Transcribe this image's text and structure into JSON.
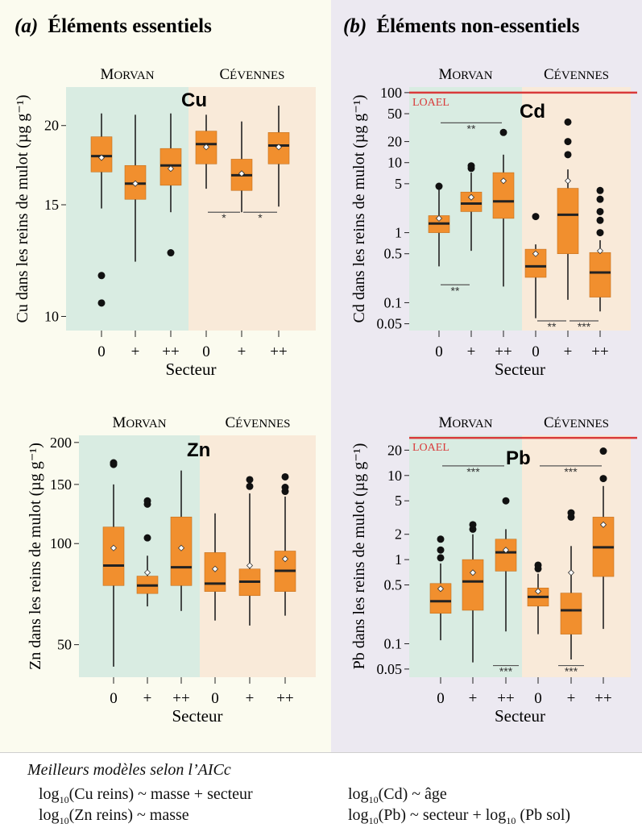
{
  "colors": {
    "left_panel_bg": "#fbfbef",
    "right_panel_bg": "#ece9f1",
    "morvan_bg": "#d9ece2",
    "cevennes_bg": "#f9ead9",
    "box_fill": "#f18f2e",
    "median": "#222222",
    "loael": "#d93a3a",
    "sig_line": "#555555"
  },
  "panels": [
    {
      "heading_letter": "(a)",
      "heading_text": "Éléments essentiels"
    },
    {
      "heading_letter": "(b)",
      "heading_text": "Éléments non-essentiels"
    }
  ],
  "region_labels": {
    "morvan": "Morvan",
    "cevennes": "Cévennes"
  },
  "loael_label": "LOAEL",
  "chart_data": [
    {
      "type": "box",
      "element": "Cu",
      "ylabel": "Cu dans les reins de mulot (µg g⁻¹)",
      "xlabel": "Secteur",
      "log_scale": true,
      "ylim": [
        9.5,
        23
      ],
      "yticks": [
        10,
        15,
        20
      ],
      "categories": [
        "0",
        "+",
        "++",
        "0",
        "+",
        "++"
      ],
      "regions": [
        "Morvan",
        "Morvan",
        "Morvan",
        "Cévennes",
        "Cévennes",
        "Cévennes"
      ],
      "boxes": [
        {
          "min": 14.8,
          "q1": 16.9,
          "median": 17.9,
          "q3": 19.2,
          "max": 20.9,
          "mean": 17.8,
          "outliers": [
            11.6,
            10.5
          ]
        },
        {
          "min": 12.2,
          "q1": 15.3,
          "median": 16.2,
          "q3": 17.3,
          "max": 20.8,
          "mean": 16.2
        },
        {
          "min": 14.6,
          "q1": 16.1,
          "median": 17.3,
          "q3": 18.4,
          "max": 20.9,
          "mean": 17.1,
          "outliers": [
            12.6
          ]
        },
        {
          "min": 15.9,
          "q1": 17.4,
          "median": 18.7,
          "q3": 19.6,
          "max": 20.8,
          "mean": 18.5
        },
        {
          "min": 14.6,
          "q1": 15.8,
          "median": 16.7,
          "q3": 17.7,
          "max": 20.3,
          "mean": 16.8
        },
        {
          "min": 14.9,
          "q1": 17.4,
          "median": 18.6,
          "q3": 19.5,
          "max": 21.5,
          "mean": 18.5
        }
      ],
      "lines": [],
      "significance": [
        {
          "from": 3,
          "to": 4,
          "label": "*",
          "y": 14.6
        },
        {
          "from": 4,
          "to": 5,
          "label": "*",
          "y": 14.6
        }
      ]
    },
    {
      "type": "box",
      "element": "Cd",
      "ylabel": "Cd dans les reins de mulot (µg g⁻¹)",
      "xlabel": "Secteur",
      "log_scale": true,
      "ylim": [
        0.04,
        120
      ],
      "yticks": [
        0.05,
        0.1,
        0.5,
        1,
        5,
        10,
        20,
        50,
        100
      ],
      "categories": [
        "0",
        "+",
        "++",
        "0",
        "+",
        "++"
      ],
      "regions": [
        "Morvan",
        "Morvan",
        "Morvan",
        "Cévennes",
        "Cévennes",
        "Cévennes"
      ],
      "boxes": [
        {
          "min": 0.33,
          "q1": 1.0,
          "median": 1.35,
          "q3": 1.75,
          "max": 4.2,
          "mean": 1.6,
          "outliers": [
            4.6
          ]
        },
        {
          "min": 0.55,
          "q1": 2.0,
          "median": 2.6,
          "q3": 3.8,
          "max": 7.2,
          "mean": 3.2,
          "outliers": [
            8.3,
            9.0
          ]
        },
        {
          "min": 0.17,
          "q1": 1.6,
          "median": 2.8,
          "q3": 7.2,
          "max": 13.0,
          "mean": 5.5,
          "outliers": [
            27
          ]
        },
        {
          "min": 0.06,
          "q1": 0.23,
          "median": 0.33,
          "q3": 0.58,
          "max": 0.68,
          "mean": 0.5,
          "outliers": [
            1.7
          ]
        },
        {
          "min": 0.11,
          "q1": 0.5,
          "median": 1.8,
          "q3": 4.3,
          "max": 8.0,
          "mean": 5.5,
          "outliers": [
            13,
            20,
            38
          ]
        },
        {
          "min": 0.075,
          "q1": 0.12,
          "median": 0.27,
          "q3": 0.52,
          "max": 0.78,
          "mean": 0.55,
          "outliers": [
            1.0,
            1.5,
            2.0,
            3.0,
            4.0
          ]
        }
      ],
      "lines": [
        {
          "label": "LOAEL",
          "y": 100
        }
      ],
      "significance": [
        {
          "from": 0,
          "to": 2,
          "label": "**",
          "y": 37
        },
        {
          "from": 0,
          "to": 1,
          "label": "**",
          "y": 0.18
        },
        {
          "from": 3,
          "to": 4,
          "label": "**",
          "y": 0.055
        },
        {
          "from": 4,
          "to": 5,
          "label": "***",
          "y": 0.055
        }
      ]
    },
    {
      "type": "box",
      "element": "Zn",
      "ylabel": "Zn dans les reins de mulot (µg g⁻¹)",
      "xlabel": "Secteur",
      "log_scale": true,
      "ylim": [
        40,
        210
      ],
      "yticks": [
        50,
        100,
        150,
        200
      ],
      "categories": [
        "0",
        "+",
        "++",
        "0",
        "+",
        "++"
      ],
      "regions": [
        "Morvan",
        "Morvan",
        "Morvan",
        "Cévennes",
        "Cévennes",
        "Cévennes"
      ],
      "boxes": [
        {
          "min": 43,
          "q1": 75,
          "median": 86,
          "q3": 112,
          "max": 150,
          "mean": 97,
          "outliers": [
            172,
            174
          ]
        },
        {
          "min": 65,
          "q1": 71,
          "median": 75,
          "q3": 80,
          "max": 92,
          "mean": 82,
          "outliers": [
            104,
            131,
            134
          ]
        },
        {
          "min": 63,
          "q1": 75,
          "median": 85,
          "q3": 120,
          "max": 165,
          "mean": 97
        },
        {
          "min": 59,
          "q1": 72,
          "median": 76,
          "q3": 94,
          "max": 123,
          "mean": 84
        },
        {
          "min": 57,
          "q1": 70,
          "median": 77,
          "q3": 84,
          "max": 141,
          "mean": 86,
          "outliers": [
            148,
            155
          ]
        },
        {
          "min": 61,
          "q1": 72,
          "median": 83,
          "q3": 95,
          "max": 138,
          "mean": 90,
          "outliers": [
            143,
            147,
            158
          ]
        }
      ],
      "lines": [],
      "significance": []
    },
    {
      "type": "box",
      "element": "Pb",
      "ylabel": "Pb dans les reins de mulot (µg g⁻¹)",
      "xlabel": "Secteur",
      "log_scale": true,
      "ylim": [
        0.04,
        30
      ],
      "yticks": [
        0.05,
        0.1,
        0.5,
        1,
        2,
        5,
        10,
        20
      ],
      "categories": [
        "0",
        "+",
        "++",
        "0",
        "+",
        "++"
      ],
      "regions": [
        "Morvan",
        "Morvan",
        "Morvan",
        "Cévennes",
        "Cévennes",
        "Cévennes"
      ],
      "boxes": [
        {
          "min": 0.11,
          "q1": 0.23,
          "median": 0.32,
          "q3": 0.52,
          "max": 0.9,
          "mean": 0.45,
          "outliers": [
            1.05,
            1.3,
            1.75
          ]
        },
        {
          "min": 0.06,
          "q1": 0.25,
          "median": 0.55,
          "q3": 1.0,
          "max": 2.0,
          "mean": 0.7,
          "outliers": [
            2.3,
            2.6
          ]
        },
        {
          "min": 0.14,
          "q1": 0.73,
          "median": 1.22,
          "q3": 1.75,
          "max": 2.3,
          "mean": 1.3,
          "outliers": [
            5.0
          ]
        },
        {
          "min": 0.13,
          "q1": 0.28,
          "median": 0.36,
          "q3": 0.46,
          "max": 0.68,
          "mean": 0.42,
          "outliers": [
            0.78,
            0.86
          ]
        },
        {
          "min": 0.065,
          "q1": 0.13,
          "median": 0.25,
          "q3": 0.4,
          "max": 1.45,
          "mean": 0.7,
          "outliers": [
            3.2,
            3.6
          ]
        },
        {
          "min": 0.15,
          "q1": 0.63,
          "median": 1.4,
          "q3": 3.2,
          "max": 7.5,
          "mean": 2.6,
          "outliers": [
            9.2,
            19.5
          ]
        }
      ],
      "lines": [
        {
          "label": "LOAEL",
          "y": 28
        }
      ],
      "significance": [
        {
          "from": 0,
          "to": 2,
          "label": "***",
          "y": 13
        },
        {
          "from": 3,
          "to": 5,
          "label": "***",
          "y": 13
        },
        {
          "from": 2,
          "to": 2,
          "label": "***",
          "y": 0.055
        },
        {
          "from": 4,
          "to": 4,
          "label": "***",
          "y": 0.055
        }
      ]
    }
  ],
  "caption": {
    "title": "Meilleurs modèles selon l’AICc",
    "models": [
      {
        "log": "log",
        "base": "10",
        "rest": "(Cu reins) ~ masse + secteur"
      },
      {
        "log": "log",
        "base": "10",
        "rest": "(Cd) ~ âge"
      },
      {
        "log": "log",
        "base": "10",
        "rest": "(Zn reins) ~ masse"
      },
      {
        "log": "log",
        "base": "10",
        "rest": "(Pb) ~ secteur + ",
        "log2": "log",
        "base2": "10",
        "rest2": " (Pb sol)"
      }
    ]
  }
}
